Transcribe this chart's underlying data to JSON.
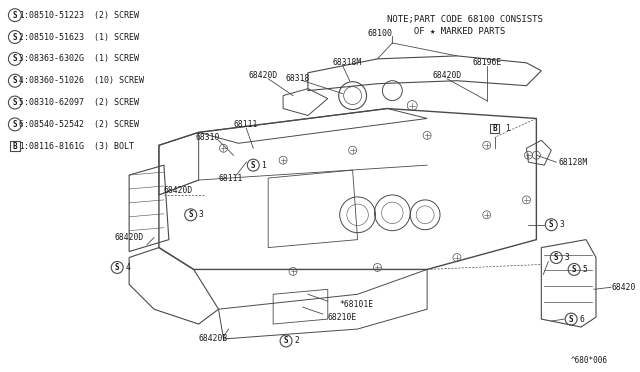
{
  "bg_color": "#ffffff",
  "line_color": "#4a4a4a",
  "text_color": "#1a1a1a",
  "note_line1": "NOTE;PART CODE 68100 CONSISTS",
  "note_line2": "     OF ★ MARKED PARTS",
  "part_code": "^680*006",
  "bom": [
    [
      "S",
      "1",
      "08510-51223",
      "(2) SCREW"
    ],
    [
      "S",
      "2",
      "08510-51623",
      "(1) SCREW"
    ],
    [
      "S",
      "3",
      "08363-6302G",
      "(1) SCREW"
    ],
    [
      "S",
      "4",
      "08360-51026",
      "(10) SCREW"
    ],
    [
      "S",
      "5",
      "08310-62097",
      "(2) SCREW"
    ],
    [
      "S",
      "6",
      "08540-52542",
      "(2) SCREW"
    ],
    [
      "B",
      "1",
      "08116-8161G",
      "(3) BOLT"
    ]
  ]
}
